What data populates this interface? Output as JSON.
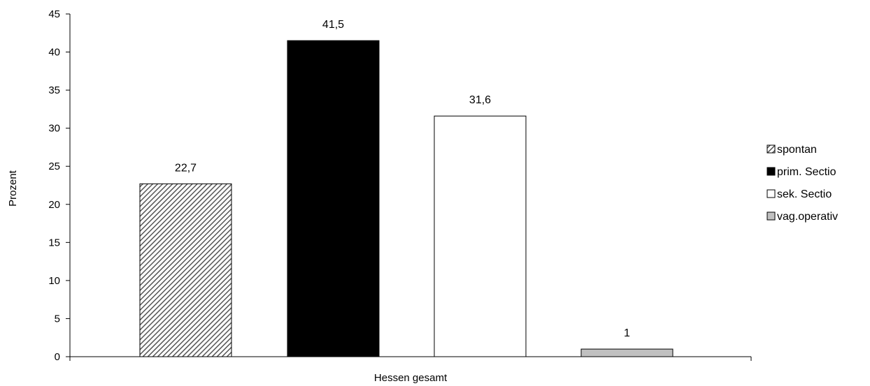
{
  "chart_data": {
    "type": "bar",
    "categories": [
      "Hessen gesamt"
    ],
    "series": [
      {
        "name": "spontan",
        "values": [
          22.7
        ],
        "label": "22,7",
        "fill": "hatch"
      },
      {
        "name": "prim. Sectio",
        "values": [
          41.5
        ],
        "label": "41,5",
        "fill": "#000000"
      },
      {
        "name": "sek. Sectio",
        "values": [
          31.6
        ],
        "label": "31,6",
        "fill": "#ffffff"
      },
      {
        "name": "vag.operativ",
        "values": [
          1
        ],
        "label": "1",
        "fill": "#c0c0c0"
      }
    ],
    "xlabel": "Hessen gesamt",
    "ylabel": "Prozent",
    "ylim": [
      0,
      45
    ],
    "yticks": [
      0,
      5,
      10,
      15,
      20,
      25,
      30,
      35,
      40,
      45
    ],
    "grid": false,
    "legend_position": "right"
  }
}
